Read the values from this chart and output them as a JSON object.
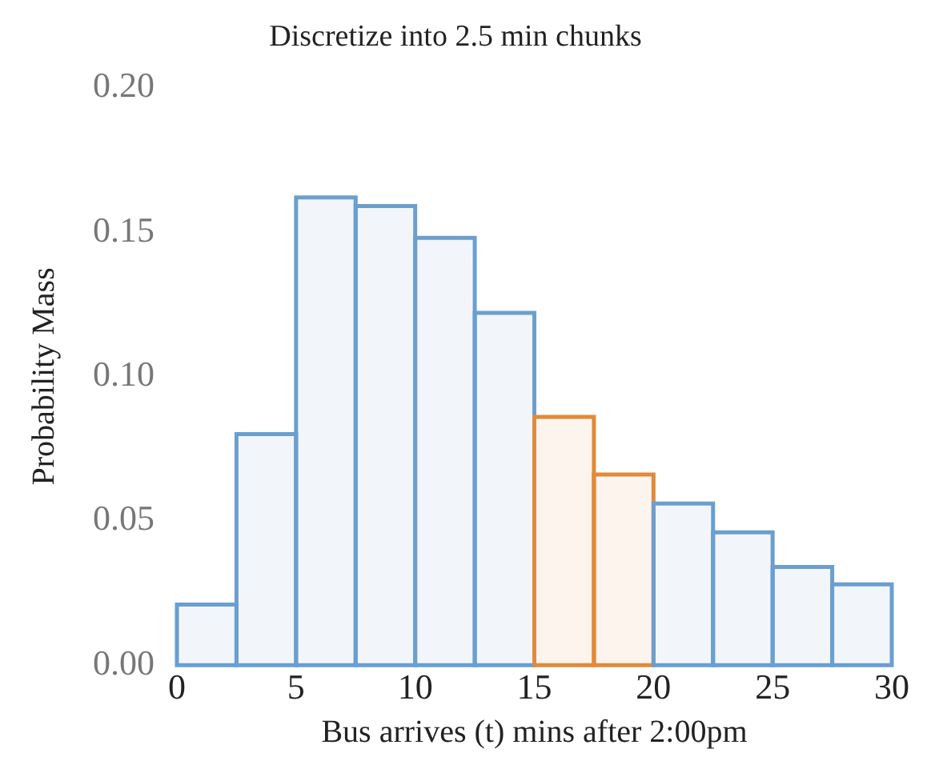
{
  "chart_data": {
    "type": "histogram",
    "title": "Discretize into 2.5 min chunks",
    "xlabel": "Bus arrives (t) mins after 2:00pm",
    "ylabel": "Probability Mass",
    "bins": [
      0,
      2.5,
      5,
      7.5,
      10,
      12.5,
      15,
      17.5,
      20,
      22.5,
      25,
      27.5,
      30
    ],
    "values": [
      0.021,
      0.08,
      0.162,
      0.159,
      0.148,
      0.122,
      0.086,
      0.066,
      0.056,
      0.046,
      0.034,
      0.028
    ],
    "colors": [
      "#6a9fcf",
      "#6a9fcf",
      "#6a9fcf",
      "#6a9fcf",
      "#6a9fcf",
      "#6a9fcf",
      "#e08a3c",
      "#e08a3c",
      "#6a9fcf",
      "#6a9fcf",
      "#6a9fcf",
      "#6a9fcf"
    ],
    "xlim": [
      0,
      30
    ],
    "xticks": [
      0,
      5,
      10,
      15,
      20,
      25,
      30
    ],
    "ylim": [
      0,
      0.2
    ],
    "yticks": [
      {
        "value": 0,
        "label": "0.00"
      },
      {
        "value": 0.05,
        "label": "0.05"
      },
      {
        "value": 0.1,
        "label": "0.10"
      },
      {
        "value": 0.15,
        "label": "0.15"
      },
      {
        "value": 0.2,
        "label": "0.20"
      }
    ],
    "grid": false,
    "legend": false
  }
}
